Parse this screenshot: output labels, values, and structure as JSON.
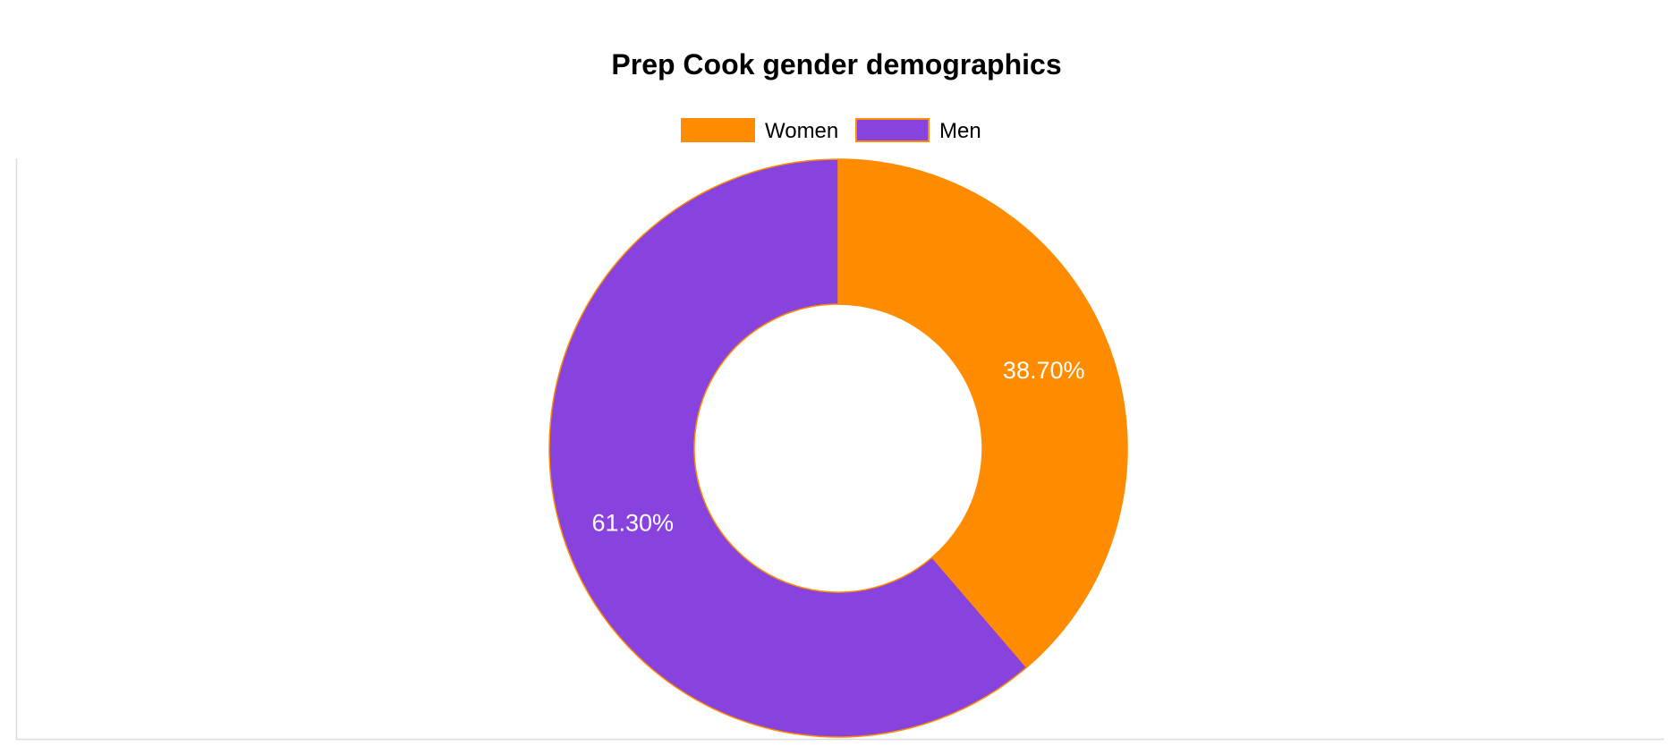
{
  "chart_data": {
    "type": "pie",
    "variant": "doughnut",
    "title": "Prep Cook gender demographics",
    "categories": [
      "Women",
      "Men"
    ],
    "values": [
      38.7,
      61.3
    ],
    "labels": [
      "38.70%",
      "61.30%"
    ],
    "legend_position": "top",
    "colors": [
      "#ff8c00",
      "#8842de"
    ],
    "border_color": "#ff8c00"
  }
}
